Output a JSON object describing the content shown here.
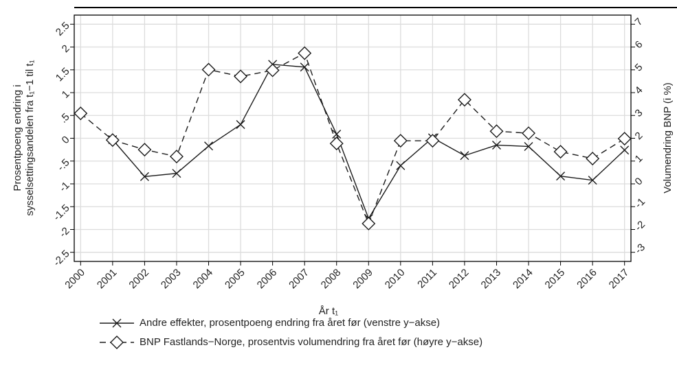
{
  "chart_data": {
    "type": "line",
    "x": [
      2000,
      2001,
      2002,
      2003,
      2004,
      2005,
      2006,
      2007,
      2008,
      2009,
      2010,
      2011,
      2012,
      2013,
      2014,
      2015,
      2016,
      2017
    ],
    "xlim": [
      1999.8,
      2017.2
    ],
    "xticks": [
      2000,
      2001,
      2002,
      2003,
      2004,
      2005,
      2006,
      2007,
      2008,
      2009,
      2010,
      2011,
      2012,
      2013,
      2014,
      2015,
      2016,
      2017
    ],
    "xlabel": "År t₁",
    "ylabel": [
      "Prosentpoeng endring i",
      "sysselsettingsandelen fra t₁−1 til t₁"
    ],
    "y2label": "Volumendring BNP (i %)",
    "ylim": [
      -2.7,
      2.7
    ],
    "yticks": [
      {
        "value": -2.5,
        "label": "-2.5"
      },
      -2,
      -1.5,
      -1,
      {
        "value": -0.5,
        "label": "-.5"
      },
      0,
      {
        "value": 0.5,
        "label": ".5"
      },
      1,
      1.5,
      2,
      2.5
    ],
    "y2lim": [
      -3.4,
      7.4
    ],
    "y2ticks": [
      -3,
      -2,
      -1,
      0,
      1,
      2,
      3,
      4,
      5,
      6,
      7
    ],
    "grid": true,
    "series": [
      {
        "name": "Andre effekter, prosentpoeng endring fra året før (venstre y−akse)",
        "color": "#1a1a1a",
        "marker": "x",
        "dash": "solid",
        "values": [
          null,
          -0.03,
          -0.84,
          -0.77,
          -0.17,
          0.3,
          1.62,
          1.56,
          0.09,
          -1.76,
          -0.6,
          0.01,
          -0.38,
          -0.15,
          -0.18,
          -0.83,
          -0.92,
          -0.26
        ]
      },
      {
        "name": "BNP Fastlands−Norge, prosentvis volumendring fra året før (høyre y−akse)",
        "color": "#1a1a1a",
        "marker": "diamond",
        "dash": "dashed",
        "axis": "y2",
        "values": [
          3.09,
          1.92,
          1.5,
          1.2,
          5.01,
          4.71,
          4.98,
          5.73,
          1.77,
          -1.74,
          1.89,
          1.89,
          3.69,
          2.31,
          2.22,
          1.41,
          1.11,
          1.98
        ]
      }
    ]
  }
}
